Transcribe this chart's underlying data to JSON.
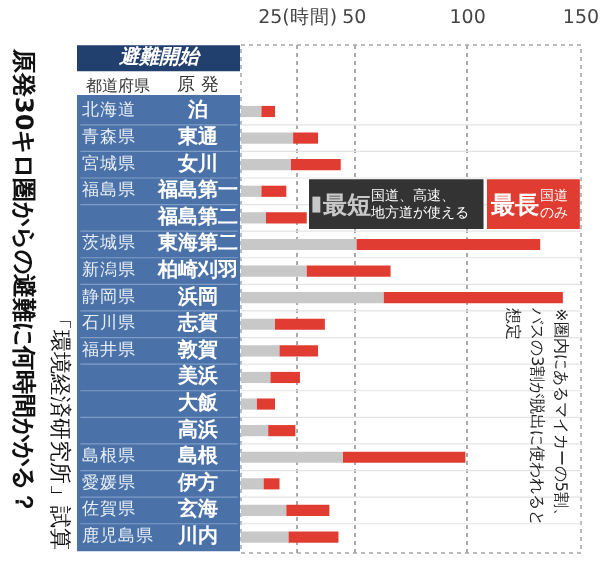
{
  "chart_data": {
    "type": "bar",
    "orientation": "horizontal",
    "stacked": true,
    "title": "原発30キロ圏からの避難に何時間かかる？",
    "ylabel": "原 発",
    "categories": [
      "泊",
      "東通",
      "女川",
      "福島第一",
      "福島第二",
      "東海第二",
      "柏崎刈羽",
      "浜岡",
      "志賀",
      "敦賀",
      "美浜",
      "大飯",
      "高浜",
      "島根",
      "伊方",
      "玄海",
      "川内"
    ],
    "y2_categories": [
      "北海道",
      "青森県",
      "宮城県",
      "福島県",
      null,
      "茨城県",
      "新潟県",
      "静岡県",
      "石川県",
      "福井県",
      null,
      null,
      null,
      "島根県",
      "愛媛県",
      "佐賀県",
      "鹿児島県"
    ],
    "series": [
      {
        "name": "最短 国道、高速、地方道が使える",
        "color": "#c8c8c8",
        "values": [
          9,
          23,
          22,
          9,
          11,
          51,
          29,
          63,
          15,
          17,
          13,
          7,
          12,
          45,
          10,
          20,
          21
        ]
      },
      {
        "name": "最長 国道のみ",
        "color": "#e03c31",
        "values": [
          6,
          11,
          22,
          11,
          18,
          81,
          37,
          79,
          22,
          17,
          13,
          8,
          12,
          54,
          7,
          19,
          22
        ]
      }
    ],
    "xlim": [
      0,
      150
    ],
    "xticks": [
      {
        "value": 25,
        "label": "25(時間)"
      },
      50,
      100,
      150
    ],
    "grid": "x",
    "annotations": [
      "都道府県",
      "避難開始",
      "「環境経済研究所」試算",
      "※圏内にあるマイカーの5割、バスの3割が脱出に使われると想定"
    ]
  }
}
